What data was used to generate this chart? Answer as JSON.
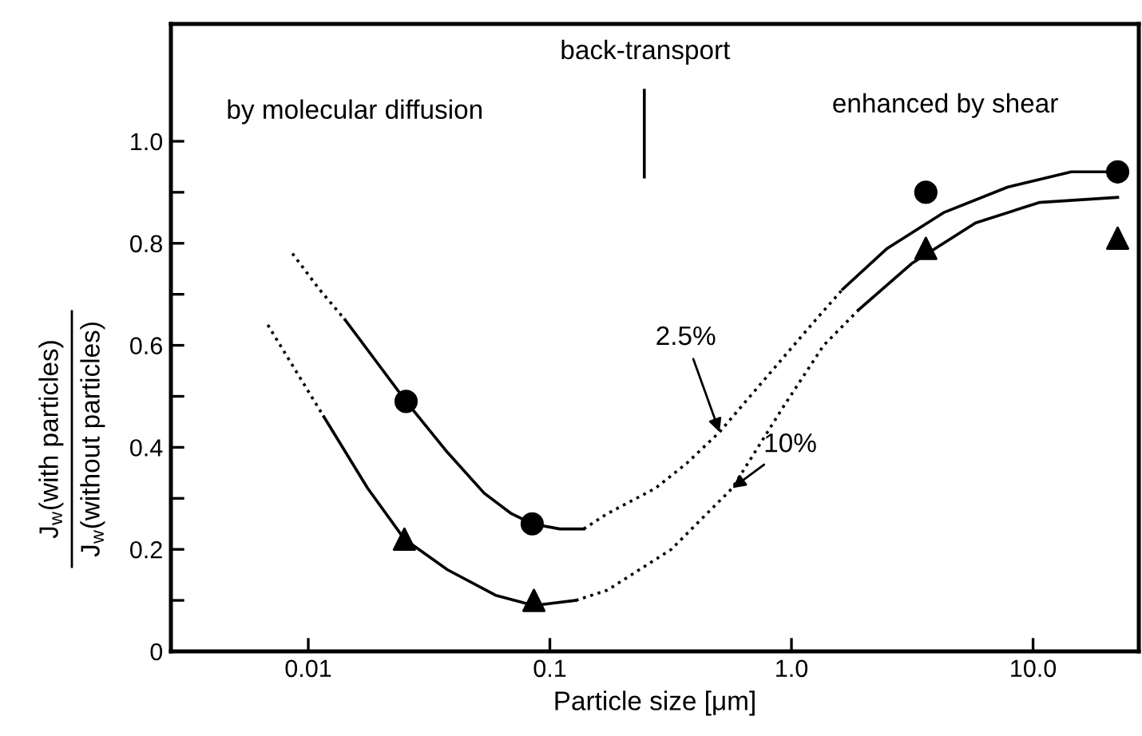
{
  "chart_data": {
    "type": "scatter",
    "xlabel": "Particle size [μm]",
    "ylabel": "J$_{w}$(with particles)\nJ$_{w}$(without particles)",
    "log": "x",
    "xlim": [
      0.0027,
      27.4
    ],
    "xticks": [
      0.01,
      0.1,
      {
        "value": 1,
        "label": "1.0"
      },
      {
        "value": 10,
        "label": "10.0"
      }
    ],
    "ylim": [
      0,
      1.23
    ],
    "yticks": [
      0,
      {
        "value": 0.1,
        "label": null
      },
      0.2,
      {
        "value": 0.3,
        "label": null
      },
      0.4,
      {
        "value": 0.5,
        "label": null
      },
      0.6,
      {
        "value": 0.7,
        "label": null
      },
      0.8,
      {
        "value": 0.9,
        "label": null
      },
      {
        "value": 1,
        "label": "1.0"
      }
    ],
    "grid": false,
    "series": [
      {
        "marker": "circle",
        "color": "#000000",
        "x": [
          0.0254,
          0.0845,
          3.6,
          22.4
        ],
        "values": [
          0.49,
          0.25,
          0.9,
          0.94
        ]
      },
      {
        "marker": "triangle",
        "color": "#000000",
        "x": [
          0.025,
          0.0859,
          3.6,
          22.4
        ],
        "values": [
          0.22,
          0.1,
          0.79,
          0.81
        ]
      },
      {
        "type": "line",
        "line_style": "dotted",
        "color": "#000000",
        "x": [
          0.0086,
          0.0111,
          0.0142
        ],
        "values": [
          0.78,
          0.71,
          0.65
        ]
      },
      {
        "type": "line",
        "line_style": "solid",
        "color": "#000000",
        "x": [
          0.0142,
          0.019,
          0.0254,
          0.0377,
          0.0535,
          0.0693,
          0.0845,
          0.11,
          0.138
        ],
        "values": [
          0.65,
          0.57,
          0.49,
          0.39,
          0.31,
          0.27,
          0.25,
          0.24,
          0.24
        ]
      },
      {
        "type": "line",
        "line_style": "dotted",
        "color": "#000000",
        "x": [
          0.138,
          0.173,
          0.274,
          0.371,
          0.504,
          0.796,
          1.26,
          1.63
        ],
        "values": [
          0.24,
          0.27,
          0.32,
          0.37,
          0.43,
          0.54,
          0.65,
          0.71
        ]
      },
      {
        "type": "line",
        "line_style": "solid",
        "color": "#000000",
        "x": [
          1.63,
          2.49,
          4.26,
          7.83,
          14.4,
          22.4
        ],
        "values": [
          0.71,
          0.79,
          0.86,
          0.91,
          0.94,
          0.94
        ]
      },
      {
        "type": "line",
        "line_style": "dotted",
        "color": "#000000",
        "x": [
          0.0068,
          0.0116
        ],
        "values": [
          0.64,
          0.46
        ]
      },
      {
        "type": "line",
        "line_style": "solid",
        "color": "#000000",
        "x": [
          0.0116,
          0.0176,
          0.025,
          0.0377,
          0.0596,
          0.0859,
          0.128
        ],
        "values": [
          0.46,
          0.32,
          0.22,
          0.16,
          0.11,
          0.09,
          0.1
        ]
      },
      {
        "type": "line",
        "line_style": "dotted",
        "color": "#000000",
        "x": [
          0.128,
          0.173,
          0.318,
          0.569,
          0.927,
          1.36,
          1.9
        ],
        "values": [
          0.1,
          0.12,
          0.2,
          0.32,
          0.48,
          0.6,
          0.67
        ]
      },
      {
        "type": "line",
        "line_style": "solid",
        "color": "#000000",
        "x": [
          1.9,
          3.14,
          5.78,
          10.6,
          22.4
        ],
        "values": [
          0.67,
          0.76,
          0.84,
          0.88,
          0.89
        ]
      },
      {
        "type": "line",
        "line_style": "solid",
        "color": "#000000",
        "x": [
          0.246,
          0.246
        ],
        "values": [
          0.93,
          1.1
        ]
      }
    ],
    "annotations": [
      "by molecular diffusion",
      "back-transport",
      "enhanced by shear",
      {
        "text": "2.5%",
        "x": 0.504,
        "y": 0.43
      },
      {
        "text": "10%",
        "x": 0.569,
        "y": 0.32
      }
    ]
  }
}
